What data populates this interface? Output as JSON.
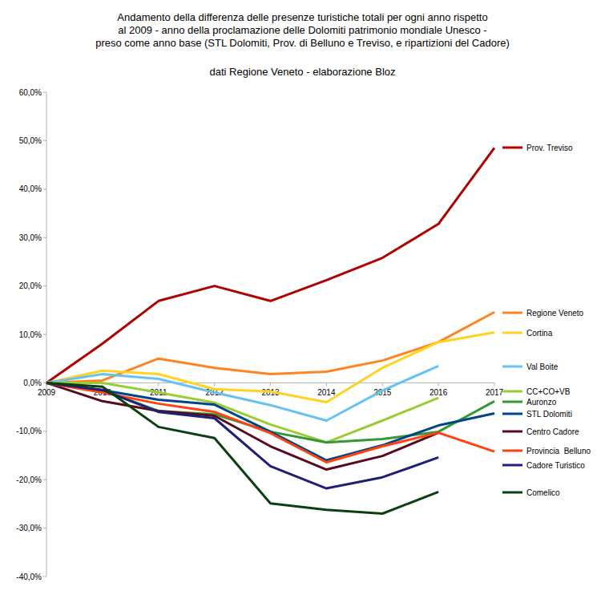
{
  "chart_data": {
    "type": "line",
    "title": "Andamento della differenza delle presenze turistiche totali per ogni anno rispetto\nal 2009 - anno della proclamazione delle Dolomiti patrimonio mondiale Unesco -\npreso come anno base (STL Dolomiti, Prov. di Belluno e Treviso, e ripartizioni del Cadore)",
    "subtitle": "dati Regione Veneto - elaborazione Bloz",
    "categories": [
      "2009",
      "2010",
      "2011",
      "2012",
      "2013",
      "2014",
      "2015",
      "2016",
      "2017"
    ],
    "ylim": [
      -40,
      60
    ],
    "yticks": [
      {
        "value": 60,
        "label": "60,0%"
      },
      {
        "value": 50,
        "label": "50,0%"
      },
      {
        "value": 40,
        "label": "40,0%"
      },
      {
        "value": 30,
        "label": "30,0%"
      },
      {
        "value": 20,
        "label": "20,0%"
      },
      {
        "value": 10,
        "label": "10,0%"
      },
      {
        "value": 0,
        "label": "0,0%"
      },
      {
        "value": -10,
        "label": "-10,0%"
      },
      {
        "value": -20,
        "label": "-20,0%"
      },
      {
        "value": -30,
        "label": "-30,0%"
      },
      {
        "value": -40,
        "label": "-40,0%"
      }
    ],
    "grid": false,
    "legend": "right",
    "series": [
      {
        "name": "Prov. Treviso",
        "color": "#b00000",
        "values": [
          0,
          8.1,
          16.9,
          20.0,
          16.9,
          21.2,
          25.8,
          32.8,
          48.5
        ]
      },
      {
        "name": "Regione Veneto",
        "color": "#ff8420",
        "values": [
          0,
          0.5,
          5.0,
          3.1,
          1.8,
          2.3,
          4.6,
          8.4,
          14.6
        ]
      },
      {
        "name": "Cortina",
        "color": "#ffd320",
        "values": [
          0,
          2.5,
          1.8,
          -1.3,
          -1.8,
          -4.0,
          3.1,
          8.4,
          10.4
        ]
      },
      {
        "name": "Val Boite",
        "color": "#66c2f0",
        "values": [
          0,
          1.8,
          0.8,
          -2.0,
          -4.6,
          -7.8,
          -1.6,
          3.5,
          null
        ]
      },
      {
        "name": "CC+CO+VB",
        "color": "#9acd32",
        "values": [
          0,
          0,
          -2.0,
          -4.1,
          -8.6,
          -12.3,
          -7.8,
          -3.1,
          null
        ]
      },
      {
        "name": "Auronzo",
        "color": "#339933",
        "values": [
          0,
          -1.5,
          -5.8,
          -6.5,
          -10.1,
          -12.3,
          -11.6,
          -10.1,
          -3.8
        ]
      },
      {
        "name": "STL Dolomiti",
        "color": "#004586",
        "values": [
          0,
          -1.5,
          -3.5,
          -4.5,
          -10.1,
          -16.0,
          -12.9,
          -8.8,
          -6.3
        ]
      },
      {
        "name": "Centro Cadore",
        "color": "#5a0a1a",
        "values": [
          0,
          -3.8,
          -5.8,
          -6.8,
          -13.1,
          -17.9,
          -15.1,
          -10.3,
          null
        ]
      },
      {
        "name": "Provincia  Belluno",
        "color": "#ff420e",
        "values": [
          0,
          -2.0,
          -4.3,
          -6.0,
          -10.4,
          -16.4,
          -13.1,
          -10.3,
          -14.2
        ]
      },
      {
        "name": "Cadore Turistico",
        "color": "#1f1f7a",
        "values": [
          0,
          -1.5,
          -6.0,
          -7.3,
          -17.2,
          -21.8,
          -19.5,
          -15.4,
          null
        ]
      },
      {
        "name": "Comelico",
        "color": "#0a4010",
        "values": [
          0,
          -0.8,
          -9.1,
          -11.4,
          -24.9,
          -26.2,
          -27.0,
          -22.5,
          null
        ]
      }
    ]
  }
}
